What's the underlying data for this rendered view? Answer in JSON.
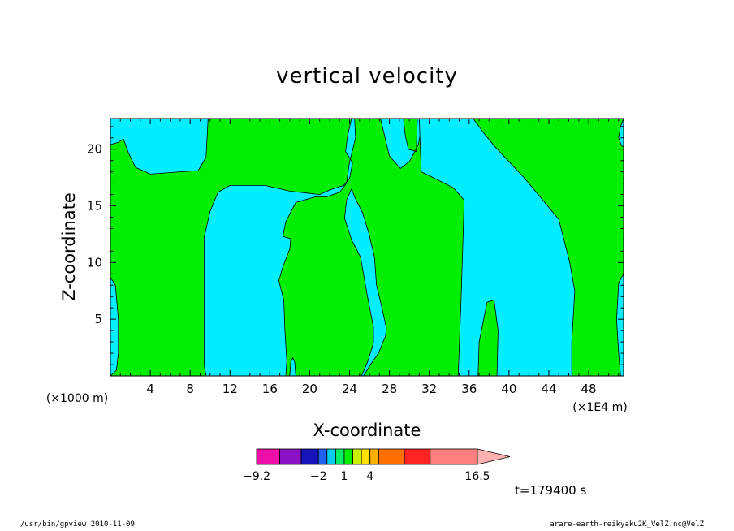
{
  "chart_data": {
    "type": "heatmap",
    "subtype": "filled-contour",
    "title": "vertical velocity",
    "xlabel": "X-coordinate",
    "ylabel": "Z-coordinate",
    "x_scale_note_left": "(×1000 m)",
    "x_scale_note_right": "(×1E4 m)",
    "xlim": [
      0,
      51.5
    ],
    "ylim": [
      0,
      22.7
    ],
    "x_ticks": [
      4,
      8,
      12,
      16,
      20,
      24,
      28,
      32,
      36,
      40,
      44,
      48
    ],
    "y_ticks": [
      5,
      10,
      15,
      20
    ],
    "colorbar": {
      "boundaries": [
        -9.2,
        -6.5,
        -4,
        -2,
        -1,
        0,
        1,
        2,
        3,
        4,
        5,
        8,
        11,
        16.5
      ],
      "colors": [
        "#ee0ea8",
        "#8a12c4",
        "#1414b8",
        "#2060ee",
        "#00ccee",
        "#00ee66",
        "#00ee00",
        "#c8f000",
        "#ffe000",
        "#ffb000",
        "#ff7000",
        "#ff2222",
        "#ff7f7f"
      ],
      "extend_color": "#ffb0b0",
      "tick_labels": [
        {
          "value": -9.2,
          "label": "−9.2"
        },
        {
          "value": -2,
          "label": "−2"
        },
        {
          "value": 1,
          "label": "1"
        },
        {
          "value": 4,
          "label": "4"
        },
        {
          "value": 16.5,
          "label": "16.5"
        }
      ]
    },
    "regions": {
      "background_color": "#00ee00",
      "cyan_color": "#00eeff",
      "cyan_regions": [
        {
          "name": "top-left",
          "polygon": [
            [
              0,
              22.7
            ],
            [
              0,
              20.4
            ],
            [
              0.8,
              20.6
            ],
            [
              1.3,
              20.9
            ],
            [
              1.8,
              19.7
            ],
            [
              2.5,
              18.4
            ],
            [
              4,
              17.8
            ],
            [
              7,
              18.0
            ],
            [
              8.8,
              18.1
            ],
            [
              9.6,
              19.3
            ],
            [
              9.8,
              22.7
            ]
          ]
        },
        {
          "name": "left-edge",
          "polygon": [
            [
              0,
              8.7
            ],
            [
              0.5,
              8.0
            ],
            [
              0.8,
              5.0
            ],
            [
              0.8,
              2.0
            ],
            [
              0.6,
              0.5
            ],
            [
              0,
              0
            ]
          ]
        },
        {
          "name": "west-column",
          "polygon": [
            [
              9.6,
              0
            ],
            [
              9.4,
              1
            ],
            [
              9.4,
              12.2
            ],
            [
              10.0,
              14.5
            ],
            [
              10.8,
              16.2
            ],
            [
              12,
              16.8
            ],
            [
              15.5,
              16.8
            ],
            [
              18,
              16.3
            ],
            [
              20,
              16.1
            ],
            [
              21,
              16.0
            ],
            [
              22,
              16.4
            ],
            [
              23.4,
              16.8
            ],
            [
              24,
              17.4
            ],
            [
              24.3,
              18.8
            ],
            [
              23.6,
              19.8
            ],
            [
              23.8,
              21.2
            ],
            [
              24.2,
              22.7
            ],
            [
              29.4,
              22.7
            ],
            [
              29.6,
              21.2
            ],
            [
              29.9,
              20.0
            ],
            [
              30.7,
              19.8
            ],
            [
              30.8,
              22.7
            ],
            [
              31.4,
              22.7
            ],
            [
              30.9,
              20.4
            ],
            [
              30.0,
              18.9
            ],
            [
              29.1,
              18.3
            ],
            [
              28.0,
              19.4
            ],
            [
              27.1,
              22.7
            ],
            [
              24.5,
              22.7
            ],
            [
              24.6,
              21.0
            ],
            [
              24.3,
              19.9
            ],
            [
              24.0,
              18.9
            ],
            [
              23.7,
              17.0
            ],
            [
              23.0,
              16.2
            ],
            [
              21.7,
              15.8
            ],
            [
              20.6,
              15.8
            ],
            [
              18.6,
              15.3
            ],
            [
              17.6,
              13.6
            ],
            [
              17.3,
              12.3
            ],
            [
              18.1,
              12.1
            ],
            [
              18.0,
              11.2
            ],
            [
              17.3,
              9.6
            ],
            [
              16.9,
              8.4
            ],
            [
              17.4,
              6.7
            ],
            [
              17.5,
              4.2
            ],
            [
              17.7,
              1.3
            ],
            [
              17.6,
              0
            ]
          ]
        },
        {
          "name": "center-column",
          "polygon": [
            [
              25.4,
              0
            ],
            [
              26.1,
              1.0
            ],
            [
              26.9,
              2.0
            ],
            [
              27.6,
              3.5
            ],
            [
              27.7,
              4.2
            ],
            [
              27.2,
              6.2
            ],
            [
              26.7,
              8.0
            ],
            [
              26.5,
              10.5
            ],
            [
              25.9,
              12.7
            ],
            [
              25.3,
              14.4
            ],
            [
              24.5,
              15.8
            ],
            [
              24.2,
              16.5
            ],
            [
              23.7,
              15.5
            ],
            [
              23.5,
              13.9
            ],
            [
              24.2,
              12.0
            ],
            [
              25.1,
              10.5
            ],
            [
              25.8,
              7.0
            ],
            [
              26.4,
              4.3
            ],
            [
              26.4,
              2.9
            ],
            [
              25.8,
              1.2
            ],
            [
              25.2,
              0
            ]
          ]
        },
        {
          "name": "east-column",
          "polygon": [
            [
              31.0,
              22.7
            ],
            [
              31.1,
              20.0
            ],
            [
              31.2,
              18.0
            ],
            [
              32.6,
              17.4
            ],
            [
              34.4,
              16.6
            ],
            [
              35.5,
              15.5
            ],
            [
              35.4,
              12.5
            ],
            [
              35.2,
              7.0
            ],
            [
              34.9,
              0
            ],
            [
              36.9,
              0
            ],
            [
              37.0,
              3.0
            ],
            [
              37.8,
              6.5
            ],
            [
              38.5,
              6.7
            ],
            [
              38.9,
              4.0
            ],
            [
              38.8,
              0
            ],
            [
              46.3,
              0
            ],
            [
              46.3,
              3.0
            ],
            [
              46.6,
              7.5
            ],
            [
              46.1,
              10.0
            ],
            [
              45.0,
              13.8
            ],
            [
              43.3,
              15.6
            ],
            [
              41.5,
              17.5
            ],
            [
              39.9,
              19.0
            ],
            [
              38.5,
              20.3
            ],
            [
              37.4,
              21.5
            ],
            [
              36.4,
              22.7
            ]
          ]
        },
        {
          "name": "right-edge-low",
          "polygon": [
            [
              51.5,
              0
            ],
            [
              51.5,
              9.0
            ],
            [
              51.0,
              8.2
            ],
            [
              50.8,
              5.0
            ],
            [
              51.0,
              2.0
            ],
            [
              51.2,
              0
            ]
          ]
        },
        {
          "name": "right-edge-top",
          "polygon": [
            [
              51.5,
              22.7
            ],
            [
              51.2,
              22.0
            ],
            [
              51.0,
              21.0
            ],
            [
              51.3,
              20.3
            ],
            [
              51.5,
              20.2
            ]
          ]
        },
        {
          "name": "center-notch",
          "polygon": [
            [
              18.0,
              0
            ],
            [
              18.1,
              1.2
            ],
            [
              18.3,
              1.6
            ],
            [
              18.5,
              1.2
            ],
            [
              18.6,
              0
            ]
          ]
        }
      ]
    },
    "time_label": "t=179400 s"
  },
  "footer": {
    "left": "/usr/bin/gpview   2010-11-09",
    "right": "arare-earth-reikyaku2K_VelZ.nc@VelZ"
  }
}
